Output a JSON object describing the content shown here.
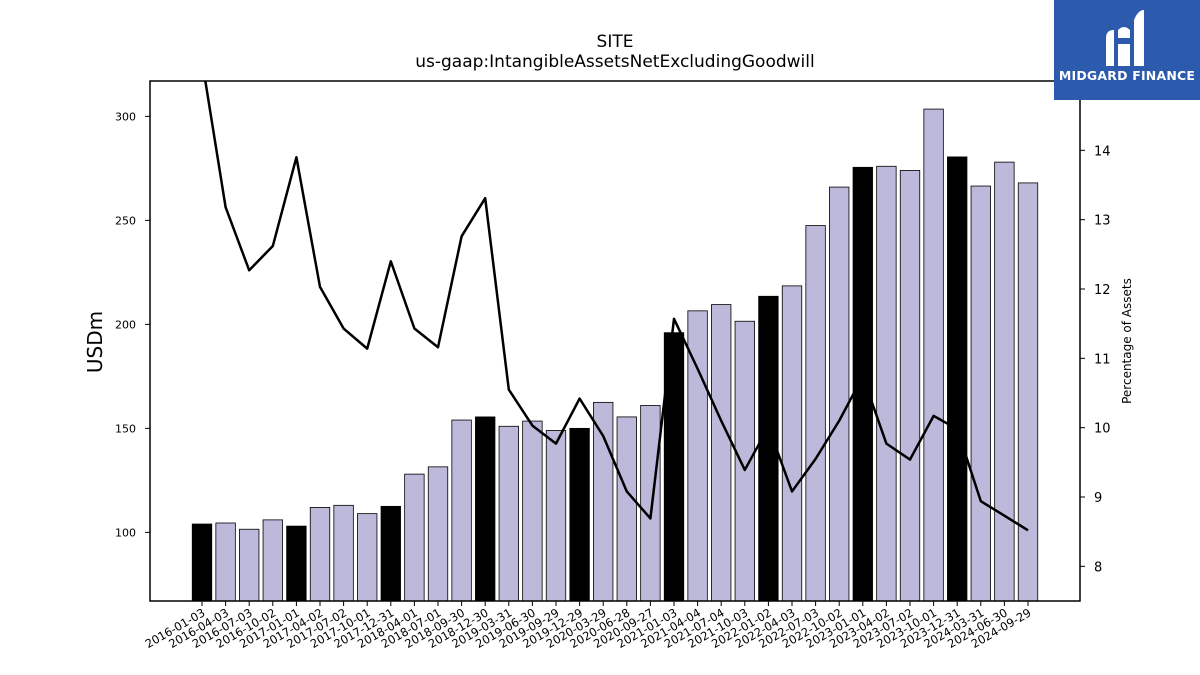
{
  "brand": {
    "name": "MIDGARD FINANCE",
    "bg_color": "#2c5aad"
  },
  "chart_data": {
    "type": "bar",
    "title": "SITE",
    "subtitle": "us-gaap:IntangibleAssetsNetExcludingGoodwill",
    "ylabel": "USDm",
    "y2label": "Percentage of Assets",
    "ylim": [
      67,
      317
    ],
    "y2lim": [
      7.5,
      15.0
    ],
    "yticks": [
      100,
      150,
      200,
      250,
      300
    ],
    "y2ticks": [
      8,
      9,
      10,
      11,
      12,
      13,
      14
    ],
    "categories": [
      "2016-01-03",
      "2016-04-03",
      "2016-07-03",
      "2016-10-02",
      "2017-01-01",
      "2017-04-02",
      "2017-07-02",
      "2017-10-01",
      "2017-12-31",
      "2018-04-01",
      "2018-07-01",
      "2018-09-30",
      "2018-12-30",
      "2019-03-31",
      "2019-06-30",
      "2019-09-29",
      "2019-12-29",
      "2020-03-29",
      "2020-06-28",
      "2020-09-27",
      "2021-01-03",
      "2021-04-04",
      "2021-07-04",
      "2021-10-03",
      "2022-01-02",
      "2022-04-03",
      "2022-07-03",
      "2022-10-02",
      "2023-01-01",
      "2023-04-02",
      "2023-07-02",
      "2023-10-01",
      "2023-12-31",
      "2024-03-31",
      "2024-06-30",
      "2024-09-29"
    ],
    "series": [
      {
        "type": "bar",
        "values": [
          104,
          104.5,
          101.5,
          106,
          103,
          112,
          113,
          109,
          112.5,
          128,
          131.5,
          154,
          155.5,
          151,
          153.5,
          149,
          150,
          162.5,
          155.5,
          161,
          196,
          206.5,
          209.5,
          201.5,
          213.5,
          218.5,
          247.5,
          266,
          275.5,
          276,
          274,
          303.5,
          280.5,
          266.5,
          278,
          268
        ],
        "colors": [
          "#000000",
          "#bcb9da",
          "#bcb9da",
          "#bcb9da",
          "#000000",
          "#bcb9da",
          "#bcb9da",
          "#bcb9da",
          "#000000",
          "#bcb9da",
          "#bcb9da",
          "#bcb9da",
          "#000000",
          "#bcb9da",
          "#bcb9da",
          "#bcb9da",
          "#000000",
          "#bcb9da",
          "#bcb9da",
          "#bcb9da",
          "#000000",
          "#bcb9da",
          "#bcb9da",
          "#bcb9da",
          "#000000",
          "#bcb9da",
          "#bcb9da",
          "#bcb9da",
          "#000000",
          "#bcb9da",
          "#bcb9da",
          "#bcb9da",
          "#000000",
          "#bcb9da",
          "#bcb9da",
          "#bcb9da"
        ]
      },
      {
        "type": "line",
        "axis": "right",
        "color": "#000000",
        "values": [
          15.3,
          13.18,
          12.27,
          12.62,
          13.9,
          12.03,
          11.43,
          11.14,
          12.4,
          11.43,
          11.16,
          12.76,
          13.31,
          10.55,
          10.03,
          9.77,
          10.42,
          9.88,
          9.08,
          8.69,
          11.57,
          10.85,
          10.1,
          9.39,
          10.01,
          9.08,
          9.55,
          10.1,
          10.74,
          9.77,
          9.54,
          10.17,
          9.98,
          8.94,
          8.73,
          8.52
        ]
      }
    ],
    "grid": false
  }
}
